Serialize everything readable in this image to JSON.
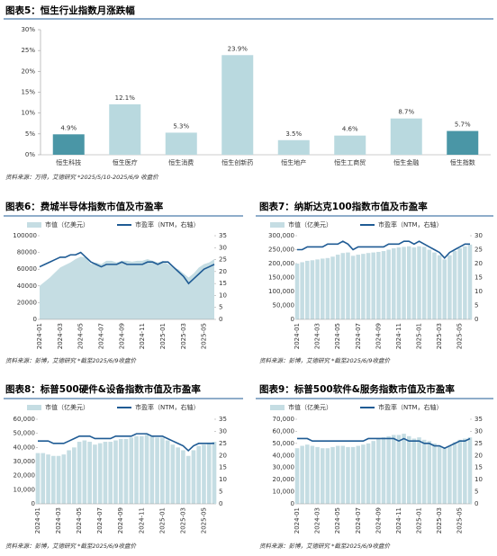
{
  "chart_data": [
    {
      "type": "bar",
      "title": "图表5：恒生行业指数月涨跌幅",
      "categories": [
        "恒生科技",
        "恒生医疗",
        "恒生消费",
        "恒生创新药",
        "恒生地产",
        "恒生工商贸",
        "恒生金融",
        "恒生指数"
      ],
      "values": [
        4.9,
        12.1,
        5.3,
        23.9,
        3.5,
        4.6,
        8.7,
        5.7
      ],
      "value_labels": [
        "4.9%",
        "12.1%",
        "5.3%",
        "23.9%",
        "3.5%",
        "4.6%",
        "8.7%",
        "5.7%"
      ],
      "colors": [
        "#4a96a6",
        "#b9d9df",
        "#b9d9df",
        "#b9d9df",
        "#b9d9df",
        "#b9d9df",
        "#b9d9df",
        "#4a96a6"
      ],
      "ylim": [
        0,
        30
      ],
      "yticks": [
        {
          "value": 0,
          "label": "0%"
        },
        {
          "value": 5,
          "label": "5%"
        },
        {
          "value": 10,
          "label": "10%"
        },
        {
          "value": 15,
          "label": "15%"
        },
        {
          "value": 20,
          "label": "20%"
        },
        {
          "value": 25,
          "label": "25%"
        },
        {
          "value": 30,
          "label": "30%"
        }
      ],
      "source": "资料来源：万得，艾德研究   *2025/5/10-2025/6/9 收盘价"
    },
    {
      "type": "area-line",
      "title": "图表6：费城半导体指数市值及市盈率",
      "categories": [
        "2024-01",
        null,
        null,
        null,
        "2024-03",
        null,
        null,
        null,
        "2024-05",
        null,
        null,
        null,
        "2024-07",
        null,
        null,
        null,
        "2024-09",
        null,
        null,
        null,
        "2024-11",
        null,
        null,
        null,
        "2025-01",
        null,
        null,
        null,
        "2025-03",
        null,
        null,
        null,
        "2025-05",
        null,
        null
      ],
      "series": [
        {
          "name": "市值（亿美元）",
          "color": "#c5dde3",
          "values": [
            40000,
            45000,
            50000,
            56000,
            62000,
            65000,
            68000,
            72000,
            75000,
            74000,
            66000,
            68000,
            66000,
            70000,
            70000,
            68000,
            70000,
            70000,
            69000,
            70000,
            70000,
            72000,
            70000,
            68000,
            70000,
            66000,
            62000,
            60000,
            55000,
            50000,
            55000,
            62000,
            66000,
            68000,
            72000
          ]
        },
        {
          "name": "市盈率（NTM，右轴）",
          "color": "#1f5b94",
          "axis": "y2",
          "values": [
            22,
            23,
            24,
            25,
            26,
            26,
            27,
            27,
            28,
            26,
            24,
            23,
            22,
            23,
            23,
            23,
            24,
            23,
            23,
            23,
            23,
            24,
            24,
            23,
            24,
            24,
            22,
            20,
            18,
            15,
            17,
            19,
            21,
            22,
            23
          ]
        }
      ],
      "ylim": [
        0,
        100000
      ],
      "yticks": [
        0,
        20000,
        40000,
        60000,
        80000,
        100000
      ],
      "y2lim": [
        0,
        35
      ],
      "y2ticks": [
        0,
        5,
        10,
        15,
        20,
        25,
        30,
        35
      ],
      "source": "资料来源：彭博，艾德研究   *截至2025/6/9收盘价"
    },
    {
      "type": "bar-line",
      "title": "图表7：纳斯达克100指数市值及市盈率",
      "categories": [
        "2024-01",
        null,
        null,
        null,
        "2024-03",
        null,
        null,
        null,
        "2024-05",
        null,
        null,
        null,
        "2024-07",
        null,
        null,
        null,
        "2024-09",
        null,
        null,
        null,
        "2024-11",
        null,
        null,
        null,
        "2025-01",
        null,
        null,
        null,
        "2025-03",
        null,
        null,
        null,
        "2025-05",
        null,
        null
      ],
      "series": [
        {
          "name": "市值（亿美元）",
          "color": "#c5dde3",
          "values": [
            200000,
            205000,
            210000,
            212000,
            215000,
            218000,
            220000,
            225000,
            232000,
            238000,
            240000,
            228000,
            232000,
            235000,
            238000,
            240000,
            242000,
            245000,
            250000,
            255000,
            258000,
            260000,
            262000,
            258000,
            262000,
            260000,
            250000,
            240000,
            230000,
            215000,
            230000,
            245000,
            255000,
            262000,
            268000
          ]
        },
        {
          "name": "市盈率（NTM，右轴）",
          "color": "#1f5b94",
          "axis": "y2",
          "values": [
            25,
            25,
            26,
            26,
            26,
            26,
            27,
            27,
            27,
            28,
            27,
            25,
            26,
            26,
            26,
            26,
            26,
            26,
            27,
            27,
            27,
            28,
            28,
            27,
            28,
            27,
            26,
            25,
            24,
            22,
            24,
            25,
            26,
            27,
            27
          ]
        }
      ],
      "ylim": [
        0,
        300000
      ],
      "yticks": [
        {
          "value": 0,
          "label": "0"
        },
        {
          "value": 50000,
          "label": "50,000"
        },
        {
          "value": 100000,
          "label": "100,000"
        },
        {
          "value": 150000,
          "label": "150,000"
        },
        {
          "value": 200000,
          "label": "200,000"
        },
        {
          "value": 250000,
          "label": "250,000"
        },
        {
          "value": 300000,
          "label": "300,000"
        }
      ],
      "y2lim": [
        0,
        30
      ],
      "y2ticks": [
        0,
        5,
        10,
        15,
        20,
        25,
        30
      ],
      "source": "资料来源：彭博，艾德研究   *截至2025/6/9收盘价"
    },
    {
      "type": "bar-line",
      "title": "图表8：标普500硬件&设备指数市值及市盈率",
      "categories": [
        "2024-01",
        null,
        null,
        null,
        "2024-03",
        null,
        null,
        null,
        "2024-05",
        null,
        null,
        null,
        "2024-07",
        null,
        null,
        null,
        "2024-09",
        null,
        null,
        null,
        "2024-11",
        null,
        null,
        null,
        "2025-01",
        null,
        null,
        null,
        "2025-03",
        null,
        null,
        null,
        "2025-05",
        null,
        null
      ],
      "series": [
        {
          "name": "市值（亿美元）",
          "color": "#c5dde3",
          "values": [
            36000,
            36000,
            35000,
            34000,
            34000,
            35000,
            38000,
            40000,
            44000,
            45000,
            44000,
            42000,
            43000,
            44000,
            44000,
            45000,
            46000,
            46000,
            47000,
            48000,
            48000,
            49000,
            48000,
            47000,
            47000,
            45000,
            42000,
            40000,
            38000,
            34000,
            38000,
            41000,
            42000,
            43000,
            44000
          ]
        },
        {
          "name": "市盈率（NTM，右轴）",
          "color": "#1f5b94",
          "axis": "y2",
          "values": [
            26,
            26,
            26,
            25,
            25,
            25,
            26,
            27,
            28,
            28,
            28,
            27,
            27,
            27,
            27,
            28,
            28,
            28,
            28,
            29,
            29,
            29,
            28,
            28,
            28,
            27,
            26,
            25,
            24,
            22,
            24,
            25,
            25,
            25,
            25
          ]
        }
      ],
      "ylim": [
        0,
        60000
      ],
      "yticks": [
        {
          "value": 0,
          "label": "0"
        },
        {
          "value": 10000,
          "label": "10,000"
        },
        {
          "value": 20000,
          "label": "20,000"
        },
        {
          "value": 30000,
          "label": "30,000"
        },
        {
          "value": 40000,
          "label": "40,000"
        },
        {
          "value": 50000,
          "label": "50,000"
        },
        {
          "value": 60000,
          "label": "60,000"
        }
      ],
      "y2lim": [
        0,
        35
      ],
      "y2ticks": [
        0,
        5,
        10,
        15,
        20,
        25,
        30,
        35
      ],
      "source": "资料来源：彭博，艾德研究   *截至2025/6/9收盘价"
    },
    {
      "type": "bar-line",
      "title": "图表9：标普500软件&服务指数市值及市盈率",
      "categories": [
        "2024-01",
        null,
        null,
        null,
        "2024-03",
        null,
        null,
        null,
        "2024-05",
        null,
        null,
        null,
        "2024-07",
        null,
        null,
        null,
        "2024-09",
        null,
        null,
        null,
        "2024-11",
        null,
        null,
        null,
        "2025-01",
        null,
        null,
        null,
        "2025-03",
        null,
        null,
        null,
        "2025-05",
        null,
        null
      ],
      "series": [
        {
          "name": "市值（亿美元）",
          "color": "#c5dde3",
          "values": [
            46000,
            48000,
            49000,
            48000,
            47000,
            46000,
            46000,
            47000,
            48000,
            48000,
            47000,
            47000,
            48000,
            49000,
            50000,
            52000,
            54000,
            55000,
            56000,
            57000,
            57000,
            58000,
            56000,
            54000,
            55000,
            53000,
            52000,
            50000,
            48000,
            46000,
            48000,
            51000,
            53000,
            54000,
            55000
          ]
        },
        {
          "name": "市盈率（NTM，右轴）",
          "color": "#1f5b94",
          "axis": "y2",
          "values": [
            27,
            27,
            27,
            26,
            26,
            26,
            26,
            26,
            26,
            26,
            26,
            26,
            26,
            26,
            27,
            27,
            27,
            27,
            27,
            27,
            26,
            27,
            26,
            26,
            26,
            25,
            25,
            24,
            24,
            23,
            24,
            25,
            26,
            26,
            27
          ]
        }
      ],
      "ylim": [
        0,
        70000
      ],
      "yticks": [
        {
          "value": 0,
          "label": "0"
        },
        {
          "value": 10000,
          "label": "10,000"
        },
        {
          "value": 20000,
          "label": "20,000"
        },
        {
          "value": 30000,
          "label": "30,000"
        },
        {
          "value": 40000,
          "label": "40,000"
        },
        {
          "value": 50000,
          "label": "50,000"
        },
        {
          "value": 60000,
          "label": "60,000"
        },
        {
          "value": 70000,
          "label": "70,000"
        }
      ],
      "y2lim": [
        0,
        35
      ],
      "y2ticks": [
        0,
        5,
        10,
        15,
        20,
        25,
        30,
        35
      ],
      "source": "资料来源：彭博，艾德研究   *截至2025/6/9收盘价"
    }
  ]
}
